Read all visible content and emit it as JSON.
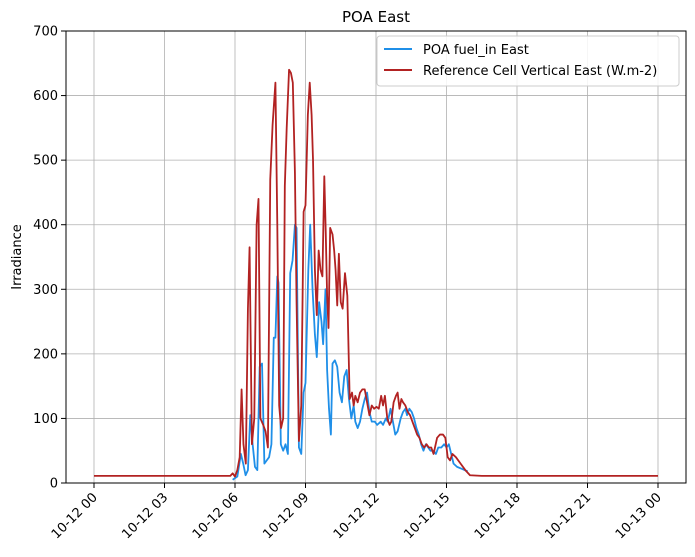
{
  "chart_data": {
    "type": "line",
    "title": "POA East",
    "xlabel": "",
    "ylabel": "Irradiance",
    "x_range": [
      "10-12 00",
      "10-13 00"
    ],
    "ylim": [
      0,
      700
    ],
    "yticks": [
      0,
      100,
      200,
      300,
      400,
      500,
      600,
      700
    ],
    "xticks": [
      {
        "hour": 0,
        "label": "10-12 00"
      },
      {
        "hour": 3,
        "label": "10-12 03"
      },
      {
        "hour": 6,
        "label": "10-12 06"
      },
      {
        "hour": 9,
        "label": "10-12 09"
      },
      {
        "hour": 12,
        "label": "10-12 12"
      },
      {
        "hour": 15,
        "label": "10-12 15"
      },
      {
        "hour": 18,
        "label": "10-12 18"
      },
      {
        "hour": 21,
        "label": "10-12 21"
      },
      {
        "hour": 24,
        "label": "10-13 00"
      }
    ],
    "grid": true,
    "legend_position": "top-right",
    "series": [
      {
        "name": "POA fuel_in East",
        "color": "#1f8fe8",
        "points": [
          [
            5.9,
            5
          ],
          [
            6.1,
            10
          ],
          [
            6.25,
            45
          ],
          [
            6.35,
            30
          ],
          [
            6.45,
            12
          ],
          [
            6.55,
            20
          ],
          [
            6.65,
            105
          ],
          [
            6.75,
            60
          ],
          [
            6.85,
            25
          ],
          [
            6.95,
            20
          ],
          [
            7.05,
            180
          ],
          [
            7.15,
            185
          ],
          [
            7.25,
            30
          ],
          [
            7.35,
            35
          ],
          [
            7.45,
            40
          ],
          [
            7.55,
            60
          ],
          [
            7.65,
            225
          ],
          [
            7.72,
            225
          ],
          [
            7.8,
            320
          ],
          [
            7.85,
            310
          ],
          [
            7.95,
            60
          ],
          [
            8.05,
            50
          ],
          [
            8.15,
            60
          ],
          [
            8.25,
            45
          ],
          [
            8.35,
            325
          ],
          [
            8.45,
            345
          ],
          [
            8.55,
            400
          ],
          [
            8.62,
            395
          ],
          [
            8.72,
            55
          ],
          [
            8.82,
            45
          ],
          [
            8.92,
            140
          ],
          [
            9.0,
            155
          ],
          [
            9.12,
            330
          ],
          [
            9.2,
            400
          ],
          [
            9.3,
            300
          ],
          [
            9.4,
            230
          ],
          [
            9.48,
            195
          ],
          [
            9.58,
            280
          ],
          [
            9.68,
            250
          ],
          [
            9.75,
            215
          ],
          [
            9.85,
            300
          ],
          [
            9.92,
            175
          ],
          [
            10.0,
            115
          ],
          [
            10.08,
            75
          ],
          [
            10.15,
            185
          ],
          [
            10.25,
            190
          ],
          [
            10.35,
            180
          ],
          [
            10.45,
            140
          ],
          [
            10.55,
            125
          ],
          [
            10.65,
            165
          ],
          [
            10.75,
            175
          ],
          [
            10.85,
            130
          ],
          [
            10.95,
            100
          ],
          [
            11.05,
            120
          ],
          [
            11.12,
            95
          ],
          [
            11.22,
            85
          ],
          [
            11.32,
            95
          ],
          [
            11.42,
            115
          ],
          [
            11.52,
            130
          ],
          [
            11.62,
            140
          ],
          [
            11.72,
            110
          ],
          [
            11.82,
            95
          ],
          [
            11.95,
            95
          ],
          [
            12.05,
            90
          ],
          [
            12.2,
            95
          ],
          [
            12.3,
            90
          ],
          [
            12.42,
            100
          ],
          [
            12.5,
            95
          ],
          [
            12.62,
            115
          ],
          [
            12.72,
            95
          ],
          [
            12.82,
            75
          ],
          [
            12.92,
            80
          ],
          [
            13.05,
            100
          ],
          [
            13.15,
            110
          ],
          [
            13.25,
            115
          ],
          [
            13.32,
            105
          ],
          [
            13.42,
            115
          ],
          [
            13.52,
            110
          ],
          [
            13.62,
            100
          ],
          [
            13.72,
            85
          ],
          [
            13.82,
            75
          ],
          [
            13.92,
            60
          ],
          [
            14.02,
            50
          ],
          [
            14.12,
            60
          ],
          [
            14.22,
            55
          ],
          [
            14.32,
            50
          ],
          [
            14.45,
            50
          ],
          [
            14.55,
            45
          ],
          [
            14.65,
            55
          ],
          [
            14.78,
            55
          ],
          [
            14.9,
            60
          ],
          [
            15.0,
            55
          ],
          [
            15.1,
            60
          ],
          [
            15.2,
            45
          ],
          [
            15.3,
            30
          ],
          [
            15.45,
            25
          ],
          [
            15.65,
            22
          ],
          [
            15.9,
            18
          ]
        ]
      },
      {
        "name": "Reference Cell Vertical East (W.m-2)",
        "color": "#b22222",
        "points": [
          [
            0.0,
            11
          ],
          [
            5.8,
            11
          ],
          [
            5.9,
            15
          ],
          [
            6.0,
            10
          ],
          [
            6.1,
            20
          ],
          [
            6.2,
            40
          ],
          [
            6.28,
            145
          ],
          [
            6.36,
            60
          ],
          [
            6.46,
            30
          ],
          [
            6.55,
            270
          ],
          [
            6.62,
            365
          ],
          [
            6.72,
            60
          ],
          [
            6.82,
            100
          ],
          [
            6.92,
            400
          ],
          [
            7.0,
            440
          ],
          [
            7.08,
            100
          ],
          [
            7.2,
            90
          ],
          [
            7.3,
            80
          ],
          [
            7.4,
            55
          ],
          [
            7.5,
            470
          ],
          [
            7.6,
            555
          ],
          [
            7.72,
            620
          ],
          [
            7.8,
            400
          ],
          [
            7.88,
            120
          ],
          [
            7.96,
            85
          ],
          [
            8.05,
            100
          ],
          [
            8.12,
            460
          ],
          [
            8.2,
            550
          ],
          [
            8.3,
            640
          ],
          [
            8.38,
            635
          ],
          [
            8.46,
            620
          ],
          [
            8.55,
            480
          ],
          [
            8.62,
            280
          ],
          [
            8.72,
            65
          ],
          [
            8.82,
            120
          ],
          [
            8.92,
            420
          ],
          [
            9.0,
            430
          ],
          [
            9.1,
            570
          ],
          [
            9.18,
            620
          ],
          [
            9.26,
            570
          ],
          [
            9.32,
            500
          ],
          [
            9.4,
            330
          ],
          [
            9.48,
            260
          ],
          [
            9.56,
            360
          ],
          [
            9.64,
            330
          ],
          [
            9.72,
            320
          ],
          [
            9.8,
            475
          ],
          [
            9.86,
            390
          ],
          [
            9.92,
            290
          ],
          [
            9.98,
            240
          ],
          [
            10.05,
            395
          ],
          [
            10.15,
            385
          ],
          [
            10.22,
            360
          ],
          [
            10.28,
            330
          ],
          [
            10.35,
            275
          ],
          [
            10.42,
            355
          ],
          [
            10.5,
            280
          ],
          [
            10.58,
            270
          ],
          [
            10.68,
            325
          ],
          [
            10.78,
            290
          ],
          [
            10.88,
            130
          ],
          [
            10.98,
            140
          ],
          [
            11.05,
            120
          ],
          [
            11.12,
            135
          ],
          [
            11.22,
            125
          ],
          [
            11.32,
            140
          ],
          [
            11.42,
            145
          ],
          [
            11.52,
            145
          ],
          [
            11.62,
            125
          ],
          [
            11.72,
            105
          ],
          [
            11.82,
            120
          ],
          [
            11.92,
            115
          ],
          [
            12.02,
            118
          ],
          [
            12.12,
            115
          ],
          [
            12.22,
            135
          ],
          [
            12.3,
            120
          ],
          [
            12.38,
            135
          ],
          [
            12.48,
            100
          ],
          [
            12.58,
            90
          ],
          [
            12.65,
            95
          ],
          [
            12.75,
            125
          ],
          [
            12.85,
            135
          ],
          [
            12.92,
            140
          ],
          [
            13.0,
            115
          ],
          [
            13.08,
            130
          ],
          [
            13.15,
            125
          ],
          [
            13.25,
            120
          ],
          [
            13.35,
            110
          ],
          [
            13.45,
            105
          ],
          [
            13.55,
            95
          ],
          [
            13.65,
            85
          ],
          [
            13.75,
            75
          ],
          [
            13.85,
            70
          ],
          [
            13.95,
            60
          ],
          [
            14.05,
            55
          ],
          [
            14.15,
            60
          ],
          [
            14.25,
            55
          ],
          [
            14.35,
            55
          ],
          [
            14.45,
            45
          ],
          [
            14.6,
            70
          ],
          [
            14.72,
            75
          ],
          [
            14.85,
            75
          ],
          [
            14.95,
            70
          ],
          [
            15.05,
            40
          ],
          [
            15.15,
            35
          ],
          [
            15.25,
            45
          ],
          [
            15.4,
            40
          ],
          [
            15.6,
            30
          ],
          [
            15.8,
            20
          ],
          [
            16.0,
            12
          ],
          [
            16.5,
            11
          ],
          [
            24.0,
            11
          ]
        ]
      }
    ]
  }
}
